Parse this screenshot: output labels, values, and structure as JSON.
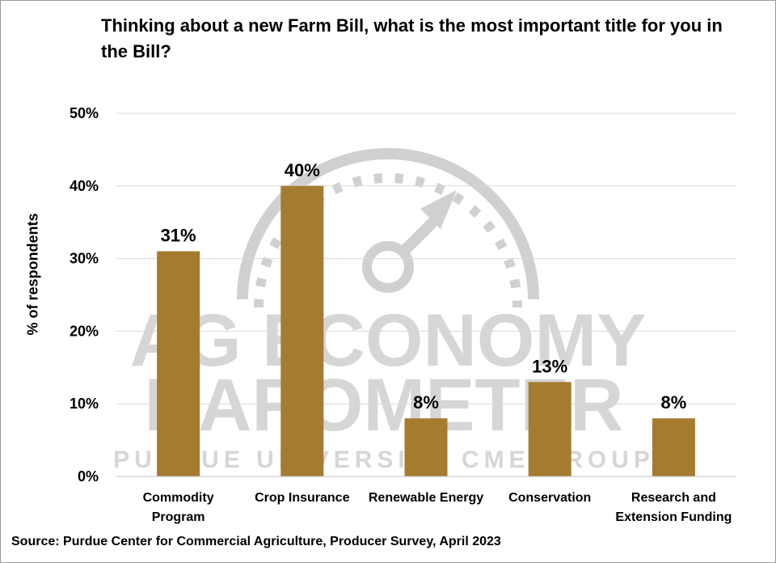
{
  "chart_data": {
    "type": "bar",
    "title": "Thinking about a new Farm Bill, what is the most important title for you in the Bill?",
    "ylabel": "% of respondents",
    "xlabel": "",
    "categories": [
      [
        "Commodity",
        "Program"
      ],
      [
        "Crop Insurance"
      ],
      [
        "Renewable Energy"
      ],
      [
        "Conservation"
      ],
      [
        "Research and",
        "Extension Funding"
      ]
    ],
    "values": [
      31,
      40,
      8,
      13,
      8
    ],
    "value_labels": [
      "31%",
      "40%",
      "8%",
      "13%",
      "8%"
    ],
    "ylim": [
      0,
      50
    ],
    "yticks": [
      0,
      10,
      20,
      30,
      40,
      50
    ],
    "ytick_labels": [
      "0%",
      "10%",
      "20%",
      "30%",
      "40%",
      "50%"
    ],
    "grid": true,
    "bar_color": "#A57C2F"
  },
  "watermark": {
    "line1": "AG ECONOMY",
    "line2": "BAROMETER",
    "line3": "PURDUE UNIVERSITY   CME GROUP"
  },
  "source": "Source: Purdue Center for Commercial Agriculture, Producer Survey, April 2023"
}
